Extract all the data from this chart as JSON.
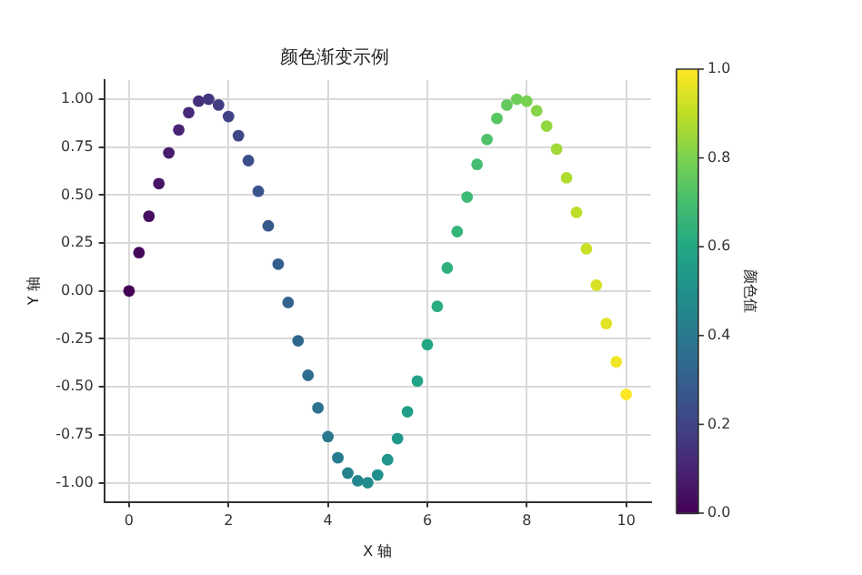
{
  "chart_data": {
    "type": "scatter",
    "title": "颜色渐变示例",
    "xlabel": "X 轴",
    "ylabel": "Y 轴",
    "clabel": "颜色值",
    "x": [
      0,
      0.2,
      0.4,
      0.6,
      0.8,
      1.0,
      1.2,
      1.4,
      1.6,
      1.8,
      2.0,
      2.2,
      2.4,
      2.6,
      2.8,
      3.0,
      3.2,
      3.4,
      3.6,
      3.8,
      4.0,
      4.2,
      4.4,
      4.6,
      4.8,
      5.0,
      5.2,
      5.4,
      5.6,
      5.8,
      6.0,
      6.2,
      6.4,
      6.6,
      6.8,
      7.0,
      7.2,
      7.4,
      7.6,
      7.8,
      8.0,
      8.2,
      8.4,
      8.6,
      8.8,
      9.0,
      9.2,
      9.4,
      9.6,
      9.8,
      10.0
    ],
    "values": [
      0,
      0.2,
      0.39,
      0.56,
      0.72,
      0.84,
      0.93,
      0.99,
      1.0,
      0.97,
      0.91,
      0.81,
      0.68,
      0.52,
      0.34,
      0.14,
      -0.06,
      -0.26,
      -0.44,
      -0.61,
      -0.76,
      -0.87,
      -0.95,
      -0.99,
      -1.0,
      -0.96,
      -0.88,
      -0.77,
      -0.63,
      -0.47,
      -0.28,
      -0.08,
      0.12,
      0.31,
      0.49,
      0.66,
      0.79,
      0.9,
      0.97,
      1.0,
      0.99,
      0.94,
      0.86,
      0.74,
      0.59,
      0.41,
      0.22,
      0.03,
      -0.17,
      -0.37,
      -0.54
    ],
    "cvalues": [
      0,
      0.02,
      0.04,
      0.06,
      0.08,
      0.1,
      0.12,
      0.14,
      0.16,
      0.18,
      0.2,
      0.22,
      0.24,
      0.26,
      0.28,
      0.3,
      0.32,
      0.34,
      0.36,
      0.38,
      0.4,
      0.42,
      0.44,
      0.46,
      0.48,
      0.5,
      0.52,
      0.54,
      0.56,
      0.58,
      0.6,
      0.62,
      0.64,
      0.66,
      0.68,
      0.7,
      0.72,
      0.74,
      0.76,
      0.78,
      0.8,
      0.82,
      0.84,
      0.86,
      0.88,
      0.9,
      0.92,
      0.94,
      0.96,
      0.98,
      1.0
    ],
    "xlim": [
      -0.5,
      10.5
    ],
    "xticks": [
      0,
      2,
      4,
      6,
      8,
      10
    ],
    "ylim": [
      -1.1,
      1.1
    ],
    "yticks": [
      {
        "value": -1,
        "label": "-1.00"
      },
      {
        "value": -0.75,
        "label": "-0.75"
      },
      {
        "value": -0.5,
        "label": "-0.50"
      },
      {
        "value": -0.25,
        "label": "-0.25"
      },
      {
        "value": 0,
        "label": "0.00"
      },
      {
        "value": 0.25,
        "label": "0.25"
      },
      {
        "value": 0.5,
        "label": "0.50"
      },
      {
        "value": 0.75,
        "label": "0.75"
      },
      {
        "value": 1,
        "label": "1.00"
      }
    ],
    "clim": [
      0,
      1
    ],
    "cticks": [
      {
        "value": 0,
        "label": "0.0"
      },
      {
        "value": 0.2,
        "label": "0.2"
      },
      {
        "value": 0.4,
        "label": "0.4"
      },
      {
        "value": 0.6,
        "label": "0.6"
      },
      {
        "value": 0.8,
        "label": "0.8"
      },
      {
        "value": 1,
        "label": "1.0"
      }
    ],
    "grid": true,
    "marker": "circle",
    "legend": false
  }
}
